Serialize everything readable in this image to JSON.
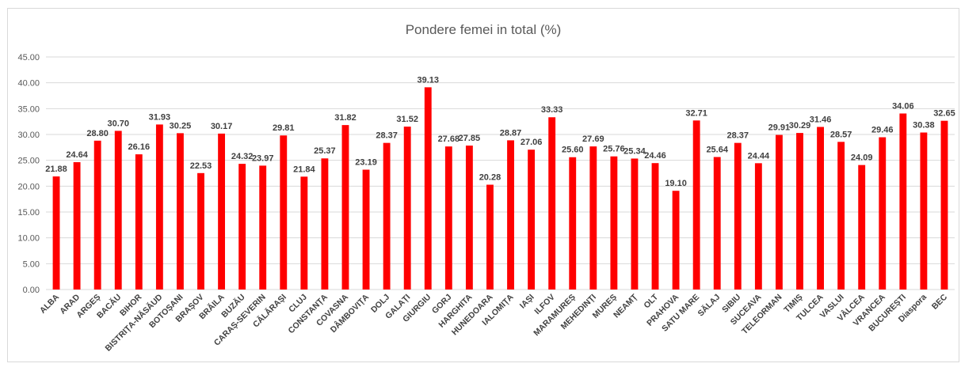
{
  "chart_data": {
    "type": "bar",
    "title": "Pondere femei in total (%)",
    "categories": [
      "ALBA",
      "ARAD",
      "ARGEȘ",
      "BACĂU",
      "BIHOR",
      "BISTRIȚA-NĂSĂUD",
      "BOTOȘANI",
      "BRAȘOV",
      "BRĂILA",
      "BUZĂU",
      "CARAȘ-SEVERIN",
      "CĂLĂRAȘI",
      "CLUJ",
      "CONSTANȚA",
      "COVASNA",
      "DÂMBOVIȚA",
      "DOLJ",
      "GALAȚI",
      "GIURGIU",
      "GORJ",
      "HARGHITA",
      "HUNEDOARA",
      "IALOMIȚA",
      "IAȘI",
      "ILFOV",
      "MARAMUREȘ",
      "MEHEDINȚI",
      "MUREȘ",
      "NEAMȚ",
      "OLT",
      "PRAHOVA",
      "SATU MARE",
      "SĂLAJ",
      "SIBIU",
      "SUCEAVA",
      "TELEORMAN",
      "TIMIȘ",
      "TULCEA",
      "VASLUI",
      "VÂLCEA",
      "VRANCEA",
      "BUCUREȘTI",
      "Diaspora",
      "BEC"
    ],
    "values": [
      21.88,
      24.64,
      28.8,
      30.7,
      26.16,
      31.93,
      30.25,
      22.53,
      30.17,
      24.32,
      23.97,
      29.81,
      21.84,
      25.37,
      31.82,
      23.19,
      28.37,
      31.52,
      39.13,
      27.68,
      27.85,
      20.28,
      28.87,
      27.06,
      33.33,
      25.6,
      27.69,
      25.76,
      25.34,
      24.46,
      19.1,
      32.71,
      25.64,
      28.37,
      24.44,
      29.91,
      30.29,
      31.46,
      28.57,
      24.09,
      29.46,
      34.06,
      30.38,
      32.65
    ],
    "value_labels": [
      "21.88",
      "24.64",
      "28.80",
      "30.70",
      "26.16",
      "31.93",
      "30.25",
      "22.53",
      "30.17",
      "24.32",
      "23.97",
      "29.81",
      "21.84",
      "25.37",
      "31.82",
      "23.19",
      "28.37",
      "31.52",
      "39.13",
      "27.68",
      "27.85",
      "20.28",
      "28.87",
      "27.06",
      "33.33",
      "25.60",
      "27.69",
      "25.76",
      "25.34",
      "24.46",
      "19.10",
      "32.71",
      "25.64",
      "28.37",
      "24.44",
      "29.91",
      "30.29",
      "31.46",
      "28.57",
      "24.09",
      "29.46",
      "34.06",
      "30.38",
      "32.65"
    ],
    "color": "#ff0000",
    "ylim": [
      0,
      45
    ],
    "yticks": [
      {
        "value": 0,
        "label": "0.00"
      },
      {
        "value": 5,
        "label": "5.00"
      },
      {
        "value": 10,
        "label": "10.00"
      },
      {
        "value": 15,
        "label": "15.00"
      },
      {
        "value": 20,
        "label": "20.00"
      },
      {
        "value": 25,
        "label": "25.00"
      },
      {
        "value": 30,
        "label": "30.00"
      },
      {
        "value": 35,
        "label": "35.00"
      },
      {
        "value": 40,
        "label": "40.00"
      },
      {
        "value": 45,
        "label": "45.00"
      }
    ],
    "grid": true
  }
}
